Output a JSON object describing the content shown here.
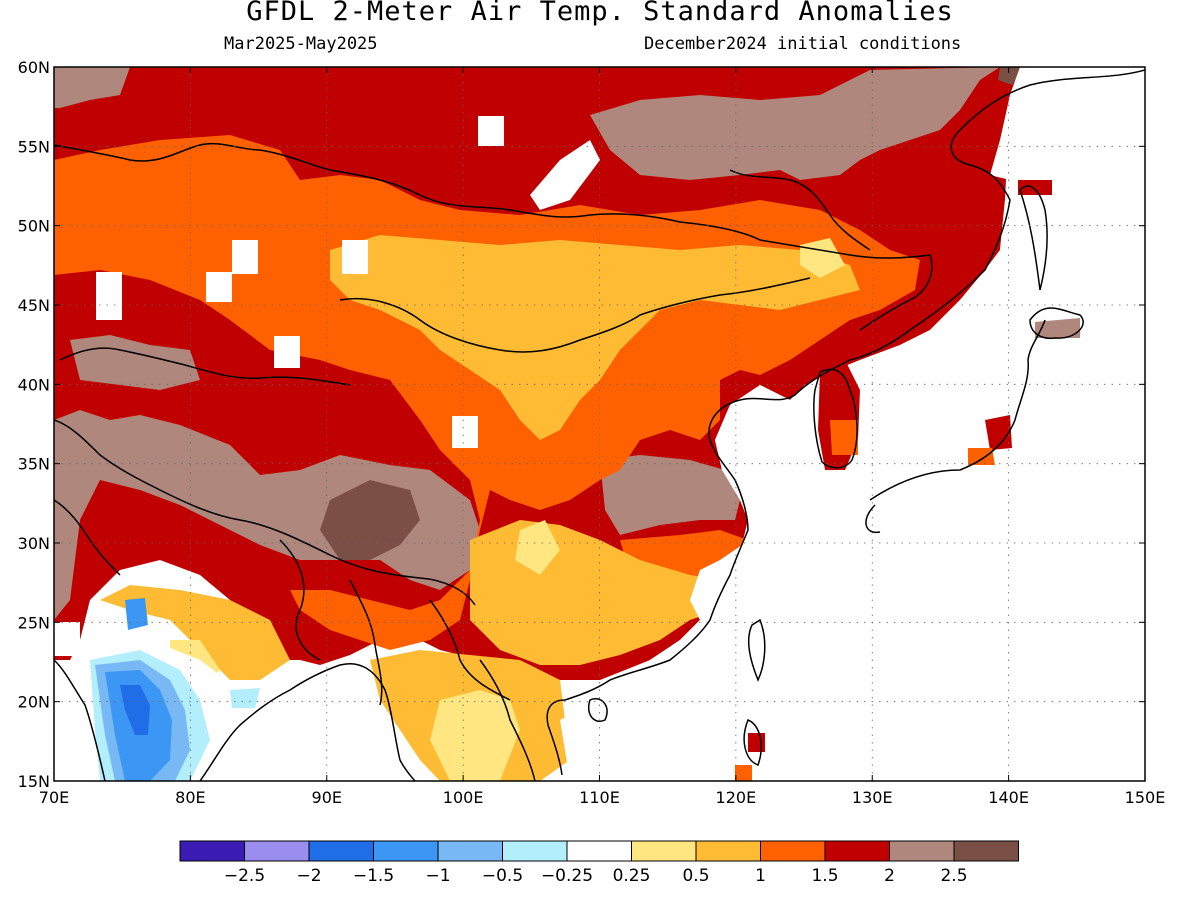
{
  "header": {
    "title": "GFDL 2-Meter Air Temp. Standard Anomalies",
    "period": "Mar2025-May2025",
    "init": "December2024 initial conditions"
  },
  "map": {
    "lon_range": [
      70,
      150
    ],
    "lat_range": [
      15,
      60
    ],
    "lon_ticks": [
      {
        "value": 70,
        "label": "70E"
      },
      {
        "value": 80,
        "label": "80E"
      },
      {
        "value": 90,
        "label": "90E"
      },
      {
        "value": 100,
        "label": "100E"
      },
      {
        "value": 110,
        "label": "110E"
      },
      {
        "value": 120,
        "label": "120E"
      },
      {
        "value": 130,
        "label": "130E"
      },
      {
        "value": 140,
        "label": "140E"
      },
      {
        "value": 150,
        "label": "150E"
      }
    ],
    "lat_ticks": [
      {
        "value": 15,
        "label": "15N"
      },
      {
        "value": 20,
        "label": "20N"
      },
      {
        "value": 25,
        "label": "25N"
      },
      {
        "value": 30,
        "label": "30N"
      },
      {
        "value": 35,
        "label": "35N"
      },
      {
        "value": 40,
        "label": "40N"
      },
      {
        "value": 45,
        "label": "45N"
      },
      {
        "value": 50,
        "label": "50N"
      },
      {
        "value": 55,
        "label": "55N"
      },
      {
        "value": 60,
        "label": "60N"
      }
    ],
    "grid": "dotted",
    "regions": [
      {
        "category": "1.5 to 2",
        "color": "#c00000",
        "lon": [
          70,
          150
        ],
        "lat": [
          15,
          60
        ]
      },
      {
        "category": "1 to 1.5",
        "color": "#ff6000",
        "lon": [
          70,
          150
        ],
        "lat": [
          15,
          60
        ]
      },
      {
        "category": "0.5 to 1",
        "color": "#ffbb33",
        "lon": [
          70,
          150
        ],
        "lat": [
          15,
          60
        ]
      },
      {
        "category": "0.25 to 0.5",
        "color": "#ffe680",
        "lon": [
          70,
          150
        ],
        "lat": [
          15,
          60
        ]
      }
    ]
  },
  "colorbar": {
    "colors": [
      "#3a1cb5",
      "#9b8cf0",
      "#1f6ee8",
      "#3c96f3",
      "#78b9f5",
      "#b2eefc",
      "#ffffff",
      "#ffe680",
      "#ffbb33",
      "#ff6000",
      "#c00000",
      "#b0877c",
      "#7a5046"
    ],
    "labels": [
      "-2.5",
      "-2",
      "-1.5",
      "-1",
      "-0.5",
      "-0.25",
      "0.25",
      "0.5",
      "1",
      "1.5",
      "2",
      "2.5"
    ]
  }
}
